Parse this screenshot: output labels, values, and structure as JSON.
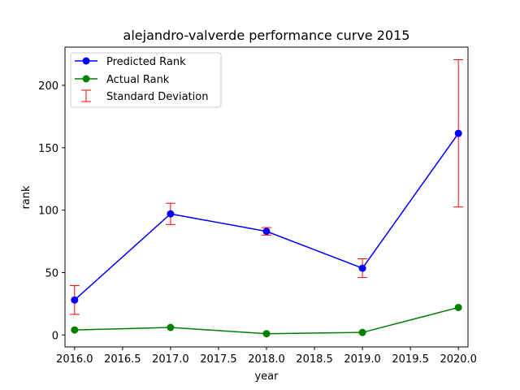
{
  "chart_data": {
    "type": "line",
    "title": "alejandro-valverde performance curve 2015",
    "xlabel": "year",
    "ylabel": "rank",
    "xlim": [
      2015.9,
      2020.1
    ],
    "ylim": [
      -9.6,
      230.6
    ],
    "x_ticks": [
      "2016.0",
      "2016.5",
      "2017.0",
      "2017.5",
      "2018.0",
      "2018.5",
      "2019.0",
      "2019.5",
      "2020.0"
    ],
    "y_ticks": [
      "0",
      "50",
      "100",
      "150",
      "200"
    ],
    "x": [
      2016,
      2017,
      2018,
      2019,
      2020
    ],
    "grid": false,
    "legend_position": "top-left",
    "series": [
      {
        "name": "Predicted Rank",
        "color": "#0000ff",
        "values": [
          28,
          97,
          83,
          53.5,
          161.5
        ],
        "error": [
          11.5,
          8.5,
          3,
          7.5,
          59
        ]
      },
      {
        "name": "Actual Rank",
        "color": "#008000",
        "values": [
          4,
          6,
          1,
          2,
          22
        ]
      }
    ],
    "error_label": "Standard Deviation",
    "error_color": "#ff0000"
  }
}
